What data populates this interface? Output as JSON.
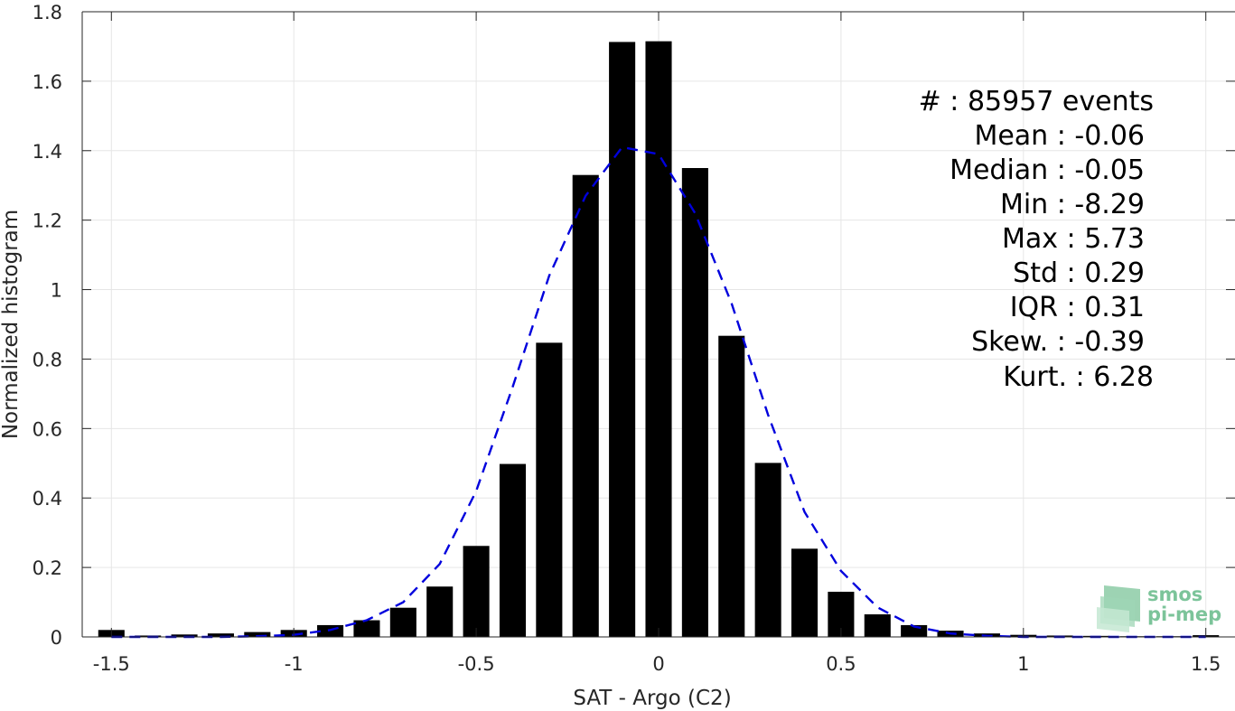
{
  "chart_data": {
    "type": "bar",
    "xlabel": "SAT - Argo (C2)",
    "ylabel": "Normalized histogram",
    "xlim": [
      -1.58,
      1.58
    ],
    "ylim": [
      0,
      1.8
    ],
    "xticks": [
      -1.5,
      -1,
      -0.5,
      0,
      0.5,
      1,
      1.5
    ],
    "xtick_labels": [
      "-1.5",
      "-1",
      "-0.5",
      "0",
      "0.5",
      "1",
      "1.5"
    ],
    "yticks": [
      0,
      0.2,
      0.4,
      0.6,
      0.8,
      1,
      1.2,
      1.4,
      1.6,
      1.8
    ],
    "ytick_labels": [
      "0",
      "0.2",
      "0.4",
      "0.6",
      "0.8",
      "1",
      "1.2",
      "1.4",
      "1.6",
      "1.8"
    ],
    "grid": true,
    "bar_color": "#000000",
    "bars": {
      "x": [
        -1.5,
        -1.4,
        -1.3,
        -1.2,
        -1.1,
        -1.0,
        -0.9,
        -0.8,
        -0.7,
        -0.6,
        -0.5,
        -0.4,
        -0.3,
        -0.2,
        -0.1,
        0.0,
        0.1,
        0.2,
        0.3,
        0.4,
        0.5,
        0.6,
        0.7,
        0.8,
        0.9,
        1.0,
        1.1,
        1.2,
        1.3,
        1.4,
        1.5
      ],
      "values": [
        0.02,
        0.004,
        0.007,
        0.01,
        0.014,
        0.02,
        0.034,
        0.048,
        0.084,
        0.145,
        0.262,
        0.498,
        0.847,
        1.33,
        1.713,
        1.715,
        1.35,
        0.867,
        0.501,
        0.254,
        0.13,
        0.065,
        0.034,
        0.018,
        0.01,
        0.006,
        0.004,
        0.003,
        0.002,
        0.002,
        0.005
      ]
    },
    "fit": {
      "name": "",
      "color": "#0000dd",
      "style": "dashed",
      "x": [
        -1.5,
        -1.4,
        -1.3,
        -1.2,
        -1.1,
        -1.0,
        -0.9,
        -0.8,
        -0.7,
        -0.6,
        -0.5,
        -0.4,
        -0.3,
        -0.2,
        -0.1,
        0.0,
        0.1,
        0.2,
        0.3,
        0.4,
        0.5,
        0.6,
        0.7,
        0.8,
        0.9,
        1.0,
        1.1,
        1.2,
        1.3,
        1.4,
        1.5
      ],
      "values": [
        0.0,
        0.0,
        0.0,
        0.0,
        0.002,
        0.006,
        0.02,
        0.048,
        0.1,
        0.21,
        0.42,
        0.72,
        1.04,
        1.27,
        1.41,
        1.39,
        1.22,
        0.96,
        0.64,
        0.36,
        0.19,
        0.085,
        0.03,
        0.01,
        0.003,
        0.0,
        0.0,
        0.0,
        0.0,
        0.0,
        0.0
      ]
    },
    "stats": [
      "#  : 85957 events",
      "Mean : -0.06",
      "Median : -0.05",
      "Min : -8.29",
      "Max : 5.73",
      "Std : 0.29",
      "IQR : 0.31",
      "Skew. : -0.39",
      "Kurt. : 6.28"
    ],
    "stats_placement": "top-right"
  },
  "logo": {
    "line1": "smos",
    "line2": "pi-mep",
    "color": "#7cc49a"
  }
}
